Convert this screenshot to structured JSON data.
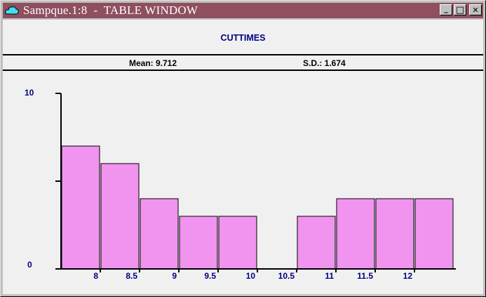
{
  "window": {
    "title": "Sampque.1:8  -  TABLE WINDOW",
    "buttons": {
      "minimize": "_",
      "maximize": "□",
      "close": "✕"
    }
  },
  "table": {
    "title": "CUTTIMES",
    "mean_label": "Mean: 9.712",
    "sd_label": "S.D.: 1.674"
  },
  "colors": {
    "titlebar": "#8f4f5f",
    "bar_fill": "#f094f0",
    "axis_text": "#000080"
  },
  "chart_data": {
    "type": "bar",
    "title": "CUTTIMES",
    "ylim": [
      0,
      10
    ],
    "y_tick_labels": [
      "0",
      "10"
    ],
    "x_tick_labels": [
      "8",
      "8.5",
      "9",
      "9.5",
      "10",
      "10.5",
      "11",
      "11.5",
      "12"
    ],
    "bins": [
      {
        "from": 7.5,
        "to": 8.0,
        "count": 7
      },
      {
        "from": 8.0,
        "to": 8.5,
        "count": 6
      },
      {
        "from": 8.5,
        "to": 9.0,
        "count": 4
      },
      {
        "from": 9.0,
        "to": 9.5,
        "count": 3
      },
      {
        "from": 9.5,
        "to": 10.0,
        "count": 3
      },
      {
        "from": 10.0,
        "to": 10.5,
        "count": 0
      },
      {
        "from": 10.5,
        "to": 11.0,
        "count": 3
      },
      {
        "from": 11.0,
        "to": 11.5,
        "count": 4
      },
      {
        "from": 11.5,
        "to": 12.0,
        "count": 4
      },
      {
        "from": 12.0,
        "to": 12.5,
        "count": 4
      }
    ]
  }
}
